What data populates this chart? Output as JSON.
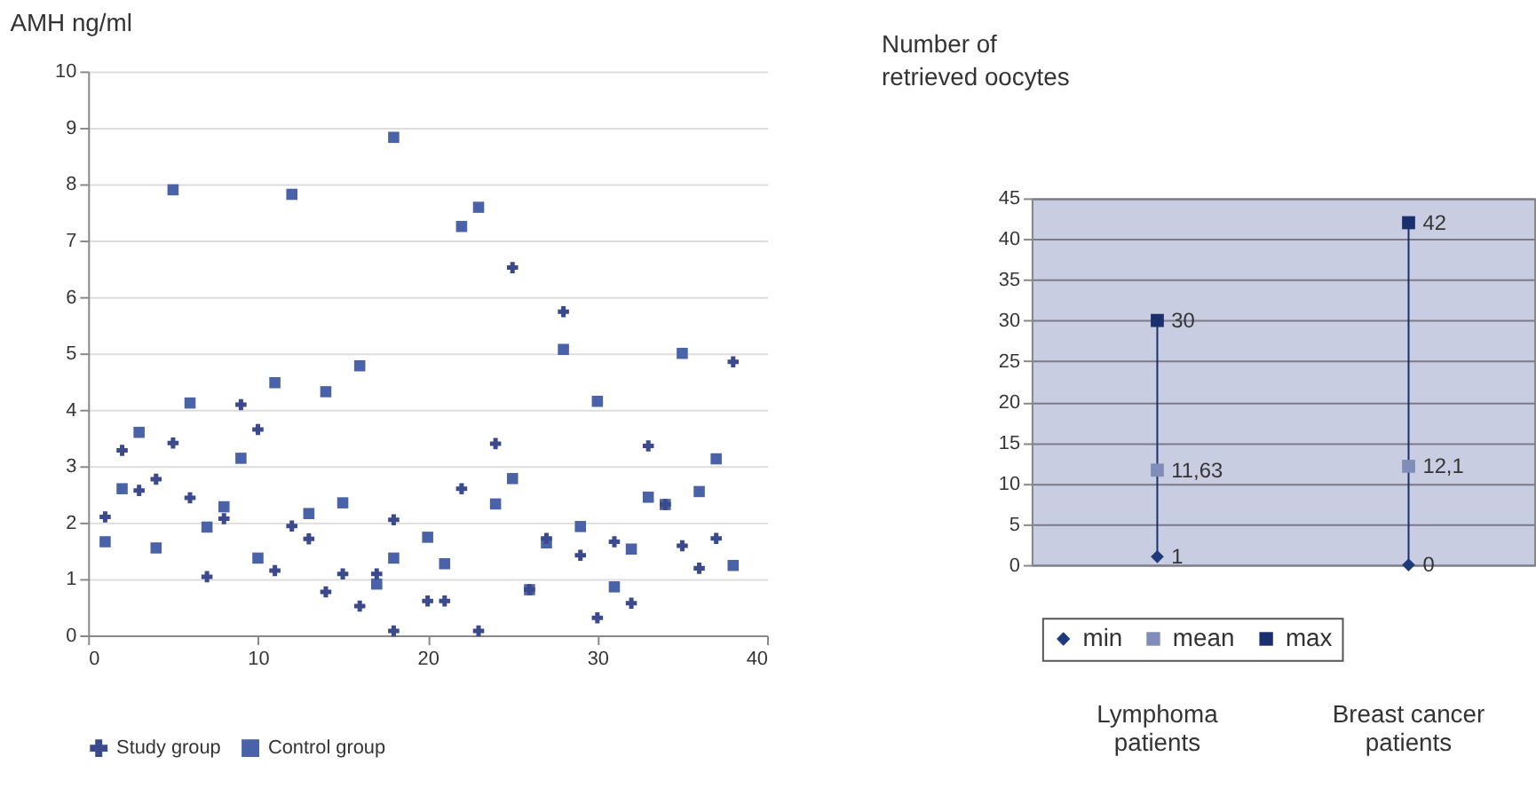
{
  "chart_data": [
    {
      "type": "scatter",
      "ylabel": "AMH ng/ml",
      "xlim": [
        0,
        40
      ],
      "xticks": [
        0,
        10,
        20,
        30,
        40
      ],
      "ylim": [
        0,
        10
      ],
      "yticks": [
        0,
        1,
        2,
        3,
        4,
        5,
        6,
        7,
        8,
        9,
        10
      ],
      "grid": "y",
      "legend": "bottom",
      "series": [
        {
          "name": "Study group",
          "color": "#3b4a8c",
          "marker": "cross",
          "x": [
            1,
            2,
            3,
            4,
            5,
            6,
            7,
            8,
            9,
            10,
            11,
            12,
            13,
            14,
            15,
            16,
            17,
            18,
            18,
            20,
            21,
            22,
            23,
            24,
            25,
            26,
            27,
            28,
            29,
            30,
            31,
            32,
            33,
            34,
            35,
            36,
            37,
            38
          ],
          "values": [
            2.1,
            3.28,
            2.57,
            2.77,
            3.41,
            2.44,
            1.04,
            2.07,
            4.09,
            3.65,
            1.15,
            1.94,
            1.71,
            0.77,
            1.09,
            0.52,
            1.09,
            2.05,
            0.08,
            0.61,
            0.61,
            2.6,
            0.08,
            3.4,
            6.52,
            0.81,
            1.72,
            5.74,
            1.42,
            0.31,
            1.66,
            0.57,
            3.36,
            2.32,
            1.59,
            1.19,
            1.72,
            4.85
          ]
        },
        {
          "name": "Control group",
          "color": "#4a62a8",
          "marker": "square",
          "x": [
            1,
            2,
            3,
            4,
            5,
            6,
            7,
            8,
            9,
            10,
            11,
            12,
            13,
            14,
            15,
            16,
            17,
            18,
            18,
            20,
            21,
            22,
            23,
            24,
            25,
            26,
            27,
            28,
            29,
            30,
            31,
            32,
            33,
            34,
            35,
            36,
            37,
            38
          ],
          "values": [
            1.66,
            2.6,
            3.6,
            1.55,
            7.9,
            4.12,
            1.92,
            2.28,
            3.14,
            1.37,
            4.48,
            7.82,
            2.16,
            4.32,
            2.35,
            4.78,
            0.91,
            8.83,
            1.37,
            1.74,
            1.27,
            7.25,
            7.59,
            2.33,
            2.78,
            0.81,
            1.64,
            5.07,
            1.93,
            4.15,
            0.86,
            1.53,
            2.45,
            2.32,
            5.0,
            2.55,
            3.13,
            1.24
          ]
        }
      ]
    },
    {
      "type": "scatter",
      "ylabel": "Number of retrieved oocytes",
      "categories": [
        "Lymphoma patients",
        "Breast cancer patients"
      ],
      "ylim": [
        0,
        45
      ],
      "yticks": [
        0,
        5,
        10,
        15,
        20,
        25,
        30,
        35,
        40,
        45
      ],
      "grid": "y",
      "legend": "bottom",
      "data_labels": true,
      "series": [
        {
          "name": "min",
          "color": "#1f3a7a",
          "marker": "diamond",
          "values": [
            1,
            0
          ],
          "value_labels": [
            "1",
            "0"
          ]
        },
        {
          "name": "mean",
          "color": "#7f8db8",
          "marker": "square",
          "values": [
            11.63,
            12.1
          ],
          "value_labels": [
            "11,63",
            "12,1"
          ]
        },
        {
          "name": "max",
          "color": "#1a2f6e",
          "marker": "square",
          "values": [
            30,
            42
          ],
          "value_labels": [
            "30",
            "42"
          ]
        }
      ]
    }
  ]
}
